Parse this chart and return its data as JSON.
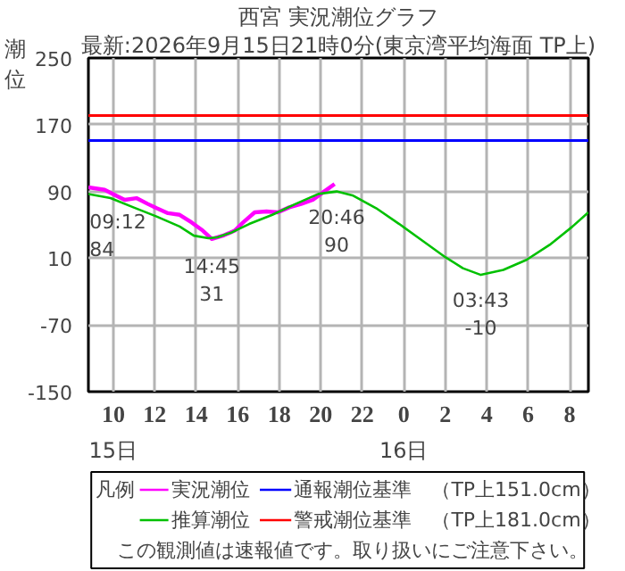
{
  "chart_data": {
    "type": "line",
    "title": "西宮 実況潮位グラフ",
    "subtitle": "最新:2026年9月15日21時0分(東京湾平均海面 TP上)",
    "ylabel": "潮位",
    "legend_title": "凡例",
    "series": [
      {
        "name": "実況潮位",
        "color": "#ff00ff",
        "x": [
          "2026-09-15T08:48",
          "2026-09-15T09:35",
          "2026-09-15T10:08",
          "2026-09-15T10:33",
          "2026-09-15T11:07",
          "2026-09-15T11:40",
          "2026-09-15T12:05",
          "2026-09-15T12:38",
          "2026-09-15T13:12",
          "2026-09-15T13:46",
          "2026-09-15T14:19",
          "2026-09-15T14:45",
          "2026-09-15T15:17",
          "2026-09-15T15:51",
          "2026-09-15T16:16",
          "2026-09-15T16:49",
          "2026-09-15T17:23",
          "2026-09-15T17:56",
          "2026-09-15T18:29",
          "2026-09-15T19:03",
          "2026-09-15T19:37",
          "2026-09-15T20:10",
          "2026-09-15T20:40"
        ],
        "values": [
          95,
          92,
          85,
          80,
          82,
          75,
          70,
          64,
          62,
          53,
          43,
          33,
          37,
          43,
          53,
          65,
          66,
          65,
          71,
          75,
          80,
          90,
          99
        ]
      },
      {
        "name": "推算潮位",
        "color": "#00c000",
        "x": [
          "2026-09-15T08:48",
          "2026-09-15T09:52",
          "2026-09-15T10:58",
          "2026-09-15T12:05",
          "2026-09-15T13:12",
          "2026-09-15T13:53",
          "2026-09-15T14:35",
          "2026-09-15T15:01",
          "2026-09-15T15:43",
          "2026-09-15T16:33",
          "2026-09-15T17:40",
          "2026-09-15T18:47",
          "2026-09-15T19:53",
          "2026-09-15T20:46",
          "2026-09-15T21:34",
          "2026-09-15T22:40",
          "2026-09-15T23:47",
          "2026-09-16T00:54",
          "2026-09-16T02:01",
          "2026-09-16T02:51",
          "2026-09-16T03:43",
          "2026-09-16T04:48",
          "2026-09-16T05:55",
          "2026-09-16T07:02",
          "2026-09-16T08:08",
          "2026-09-16T08:54"
        ],
        "values": [
          87,
          82,
          71,
          60,
          48,
          37,
          34,
          35,
          41,
          51,
          62,
          75,
          87,
          90,
          85,
          70,
          51,
          31,
          11,
          -2,
          -10,
          -4,
          8,
          26,
          48,
          65
        ]
      }
    ],
    "xlim": [
      "2026-09-15T08:48",
      "2026-09-16T08:54"
    ],
    "ylim": [
      -150,
      250
    ],
    "xticks": [
      {
        "value": "2026-09-15T10:00",
        "label": "10"
      },
      {
        "value": "2026-09-15T12:00",
        "label": "12"
      },
      {
        "value": "2026-09-15T14:00",
        "label": "14"
      },
      {
        "value": "2026-09-15T16:00",
        "label": "16"
      },
      {
        "value": "2026-09-15T18:00",
        "label": "18"
      },
      {
        "value": "2026-09-15T20:00",
        "label": "20"
      },
      {
        "value": "2026-09-15T22:00",
        "label": "22"
      },
      {
        "value": "2026-09-16T00:00",
        "label": "0"
      },
      {
        "value": "2026-09-16T02:00",
        "label": "2"
      },
      {
        "value": "2026-09-16T04:00",
        "label": "4"
      },
      {
        "value": "2026-09-16T06:00",
        "label": "6"
      },
      {
        "value": "2026-09-16T08:00",
        "label": "8"
      }
    ],
    "yticks": [
      250,
      170,
      90,
      10,
      -70,
      -150
    ],
    "grid": true,
    "legend": "bottom",
    "marker": "none",
    "line_style": "solid",
    "ref_lines": [
      {
        "axis": "y",
        "value": 151,
        "label": "通報潮位基準　（TP上151.0cm）",
        "color": "#0000ff"
      },
      {
        "axis": "y",
        "value": 181,
        "label": "警戒潮位基準　（TP上181.0cm）",
        "color": "#ff0000"
      }
    ],
    "annotations": [
      {
        "text": "09:12\n84",
        "x": "2026-09-15T09:12",
        "y": 84
      },
      {
        "text": "14:45\n31",
        "x": "2026-09-15T14:45",
        "y": 31
      },
      {
        "text": "20:46\n90",
        "x": "2026-09-15T20:46",
        "y": 90
      },
      {
        "text": "03:43\n-10",
        "x": "2026-09-16T03:43",
        "y": -10
      },
      "15日",
      "16日",
      "この観測値は速報値です。取り扱いにご注意下さい。"
    ]
  }
}
